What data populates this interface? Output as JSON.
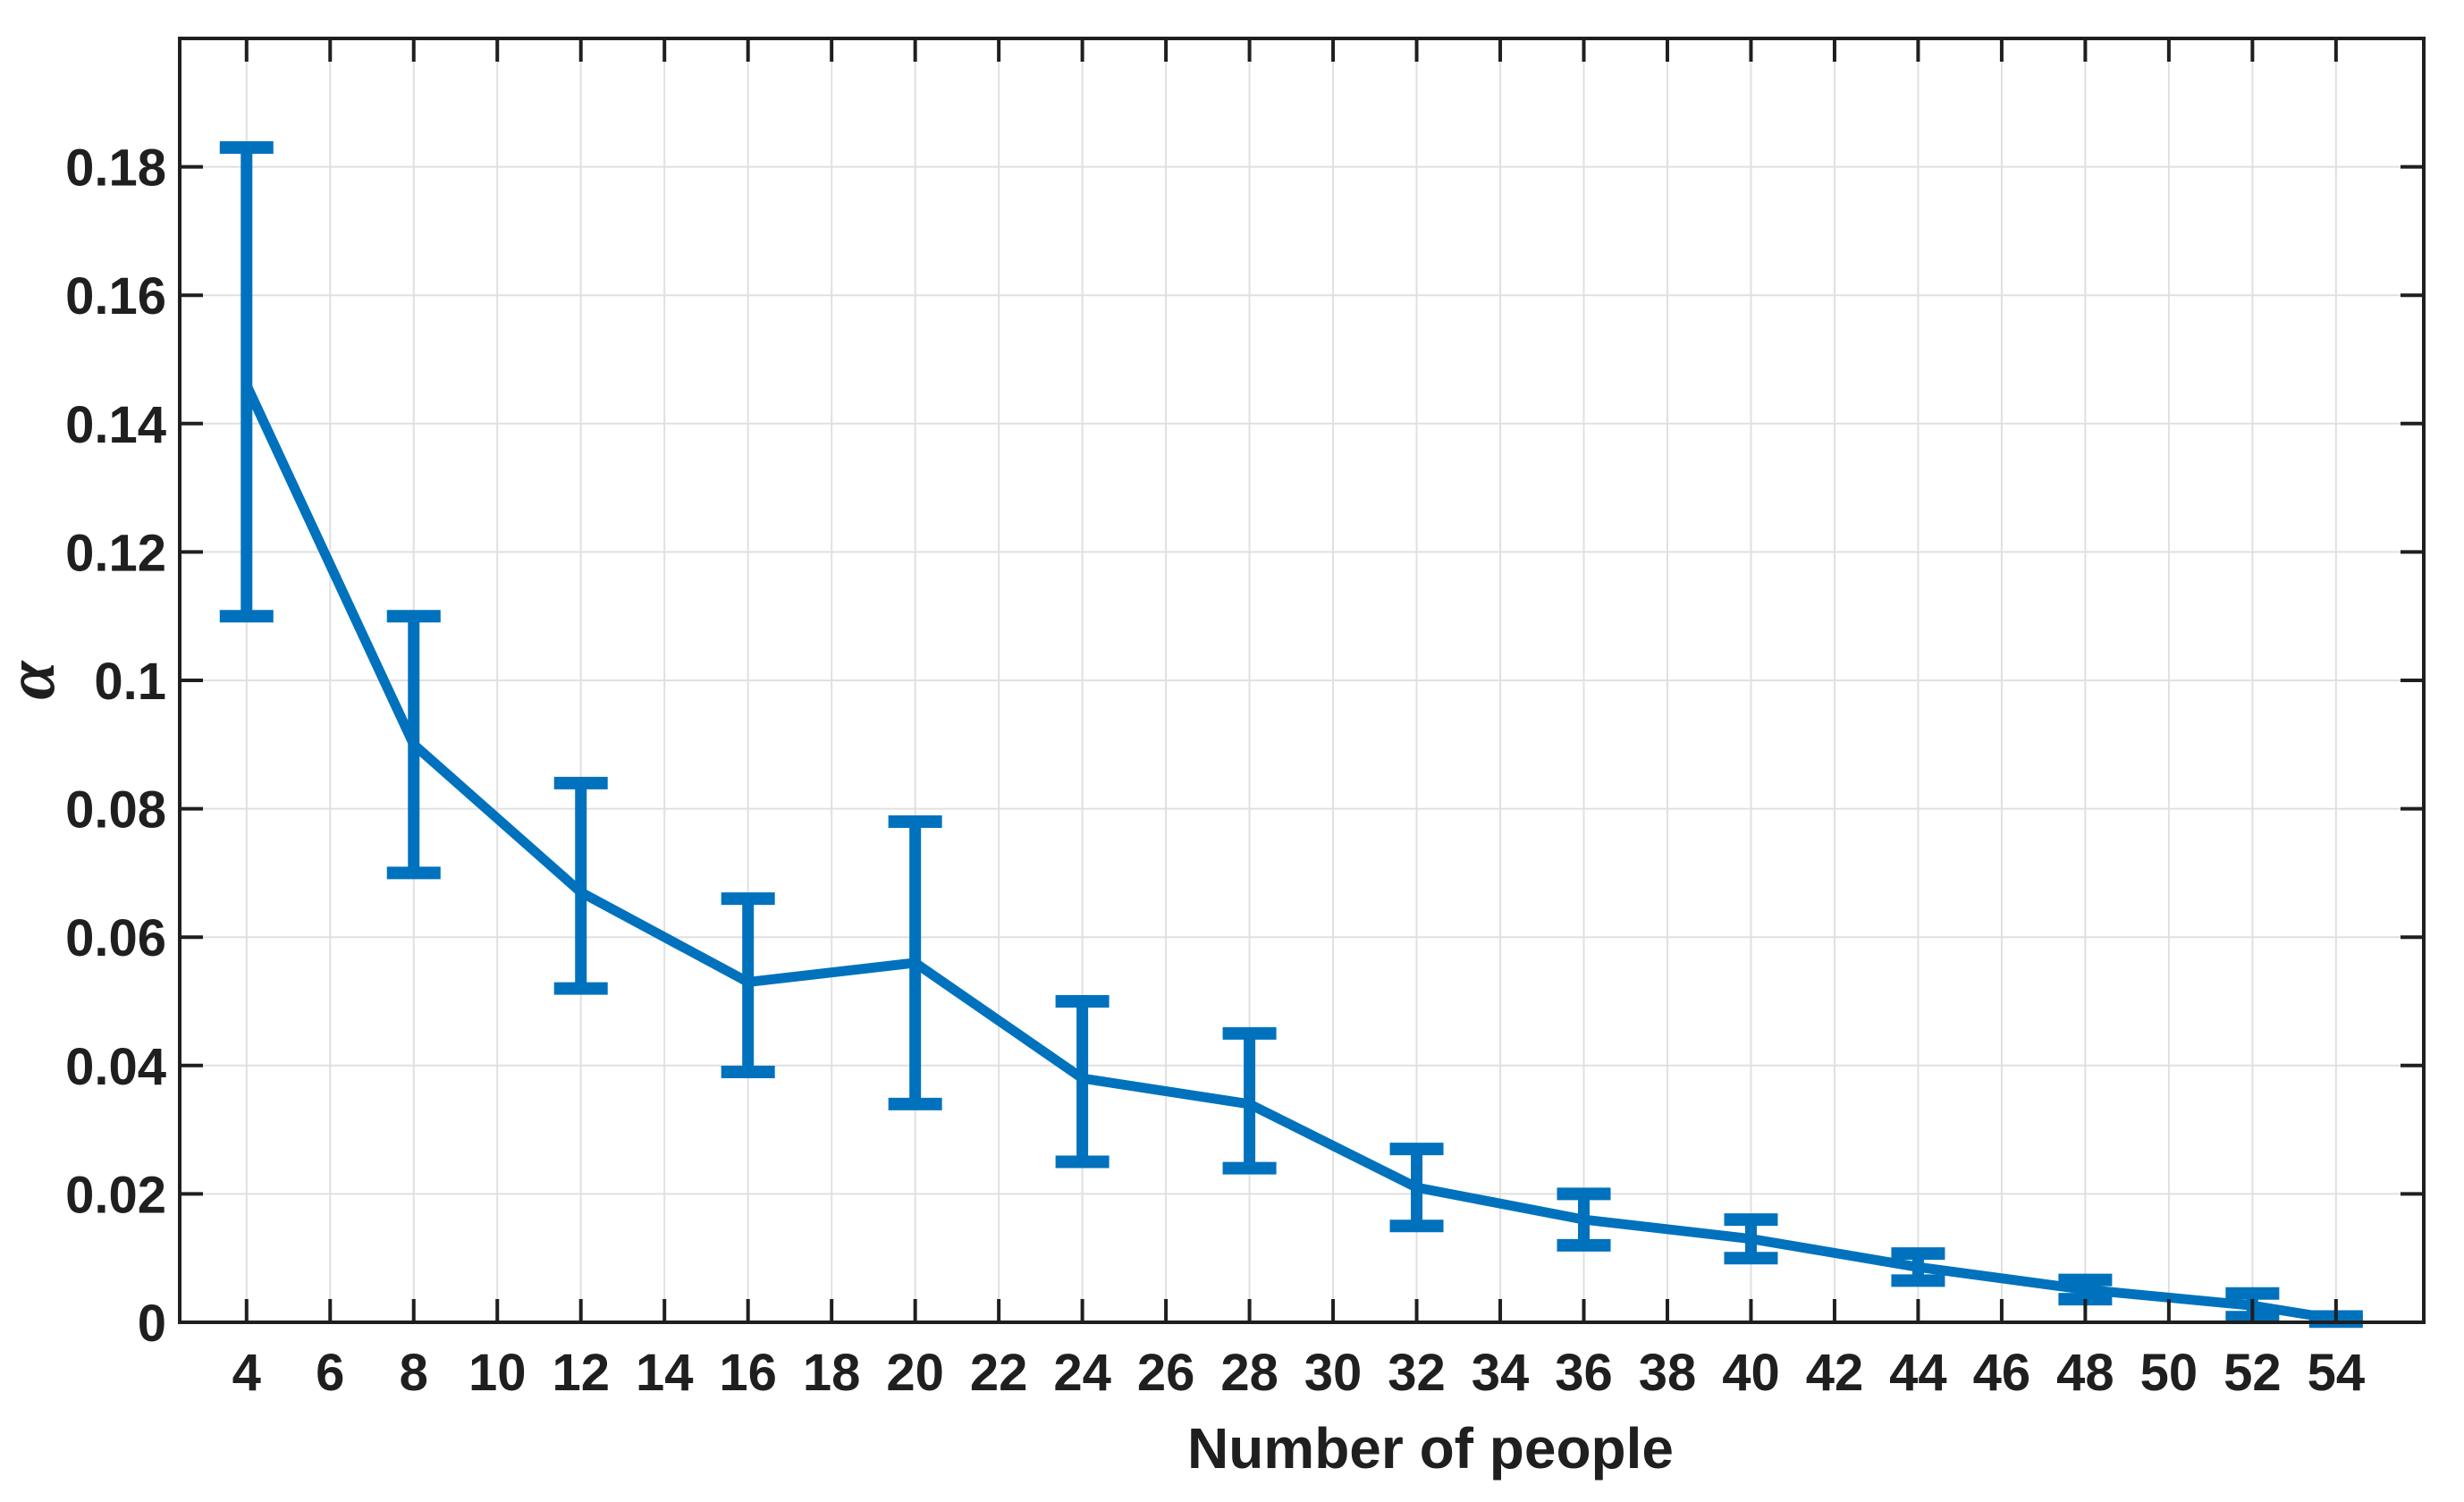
{
  "chart_data": {
    "type": "line",
    "title": "",
    "xlabel": "Number of people",
    "ylabel": "α",
    "xlim": [
      2.4,
      56.1
    ],
    "ylim": [
      0,
      0.2
    ],
    "xticks": [
      4,
      6,
      8,
      10,
      12,
      14,
      16,
      18,
      20,
      22,
      24,
      26,
      28,
      30,
      32,
      34,
      36,
      38,
      40,
      42,
      44,
      46,
      48,
      50,
      52,
      54
    ],
    "yticks": [
      0,
      0.02,
      0.04,
      0.06,
      0.08,
      0.1,
      0.12,
      0.14,
      0.16,
      0.18
    ],
    "ytick_labels": [
      "0",
      "0.02",
      "0.04",
      "0.06",
      "0.08",
      "0.1",
      "0.12",
      "0.14",
      "0.16",
      "0.18"
    ],
    "grid": true,
    "legend": "none",
    "line_color": "#0072BD",
    "axis_color": "#1f1f1f",
    "grid_color": "#e0e0e0",
    "series": [
      {
        "name": "alpha",
        "x": [
          4,
          8,
          12,
          16,
          20,
          24,
          28,
          32,
          36,
          40,
          44,
          48,
          52,
          54
        ],
        "y": [
          0.146,
          0.09,
          0.067,
          0.053,
          0.056,
          0.038,
          0.034,
          0.021,
          0.016,
          0.013,
          0.0086,
          0.0051,
          0.0026,
          0.0005
        ],
        "err_lo": [
          0.11,
          0.07,
          0.052,
          0.039,
          0.034,
          0.025,
          0.024,
          0.015,
          0.012,
          0.01,
          0.0065,
          0.0036,
          0.0008,
          0.0001
        ],
        "err_hi": [
          0.183,
          0.11,
          0.084,
          0.066,
          0.078,
          0.05,
          0.045,
          0.027,
          0.02,
          0.016,
          0.0107,
          0.0066,
          0.0045,
          0.0009
        ]
      }
    ]
  }
}
